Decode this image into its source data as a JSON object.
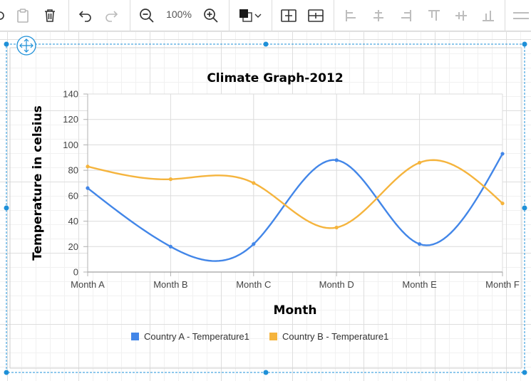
{
  "toolbar": {
    "zoom_level": "100%",
    "icons": [
      "paste-icon",
      "delete-icon",
      "undo-icon",
      "redo-icon",
      "zoom-out-icon",
      "zoom-in-icon",
      "fill-color-icon",
      "align-middle-icon",
      "align-center-icon",
      "align-left-icon",
      "align-horizontal-center-icon",
      "align-right-icon",
      "align-top-icon",
      "align-vertical-middle-icon",
      "align-bottom-icon"
    ]
  },
  "colors": {
    "series_a": "#4286e8",
    "series_b": "#f5b43d",
    "selection": "#1e90d8"
  },
  "chart_data": {
    "type": "line",
    "title": "Climate Graph-2012",
    "xlabel": "Month",
    "ylabel": "Temperature in celsius",
    "categories": [
      "Month A",
      "Month B",
      "Month C",
      "Month D",
      "Month E",
      "Month F"
    ],
    "ylim": [
      0,
      140
    ],
    "yticks": [
      0,
      20,
      40,
      60,
      80,
      100,
      120,
      140
    ],
    "grid": true,
    "legend_position": "bottom",
    "series": [
      {
        "name": "Country A - Temperature1",
        "values": [
          66,
          20,
          22,
          88,
          22,
          93
        ]
      },
      {
        "name": "Country B - Temperature1",
        "values": [
          83,
          73,
          70,
          35,
          86,
          54
        ]
      }
    ]
  }
}
